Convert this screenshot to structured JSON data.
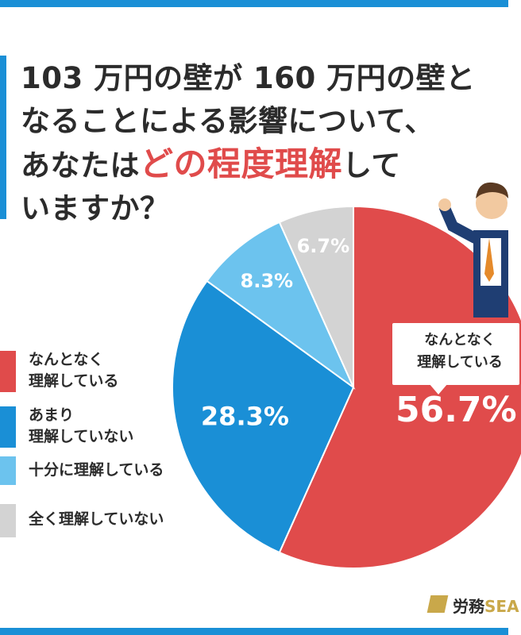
{
  "title": {
    "line1": "103 万円の壁が 160 万円の壁と",
    "line2": "なることによる影響について、",
    "line3_pre": "あなたは",
    "line3_highlight": "どの程度理解",
    "line3_post": "して",
    "line4": "いますか？"
  },
  "colors": {
    "red": "#e04b4b",
    "blue": "#1a8fd6",
    "light_blue": "#6cc3ee",
    "gray": "#d3d3d3",
    "frame": "#1a8fd6"
  },
  "chart_data": {
    "type": "pie",
    "slices": [
      {
        "label": "なんとなく\n理解している",
        "value": 56.7,
        "display": "56.7%",
        "color": "#e04b4b"
      },
      {
        "label": "あまり\n理解していない",
        "value": 28.3,
        "display": "28.3%",
        "color": "#1a8fd6"
      },
      {
        "label": "十分に理解している",
        "value": 8.3,
        "display": "8.3%",
        "color": "#6cc3ee"
      },
      {
        "label": "全く理解していない",
        "value": 6.7,
        "display": "6.7%",
        "color": "#d3d3d3"
      }
    ],
    "legend_position": "left",
    "callout": "なんとなく\n理解している"
  },
  "brand": {
    "name_main": "労務",
    "name_accent": "SEA"
  }
}
